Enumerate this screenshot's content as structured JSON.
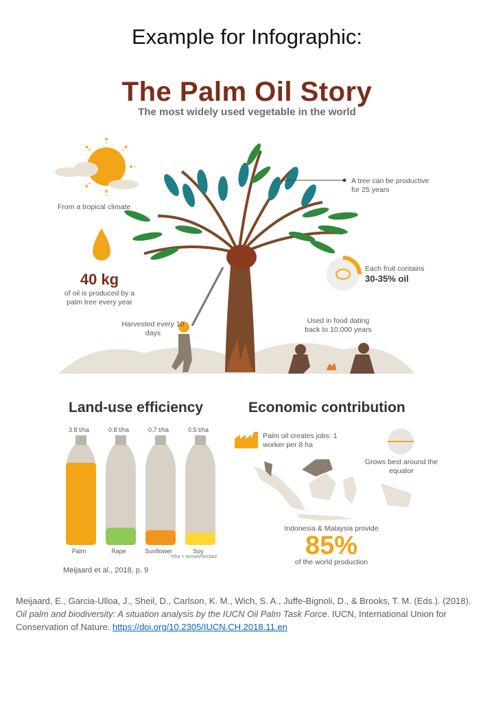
{
  "slide": {
    "title": "Example for Infographic:"
  },
  "infographic": {
    "title": "The Palm Oil Story",
    "subtitle": "The most widely used vegetable in the world",
    "climate": "From a tropical climate",
    "oil_amount": "40 kg",
    "oil_note": "of oil is produced by a palm tree every year",
    "tree_note": "A tree can be productive for 25 years",
    "fruit_note": "Each fruit contains",
    "fruit_pct": "30-35% oil",
    "harvest": "Harvested every 10 days",
    "food_history": "Used in food dating back to 10,000 years"
  },
  "land_use": {
    "heading": "Land-use efficiency",
    "bottles": [
      {
        "yield": "3.8 t/ha",
        "label": "Palm",
        "fill_fraction": 1.0,
        "color": "#f2a516"
      },
      {
        "yield": "0.8 t/ha",
        "label": "Rape",
        "fill_fraction": 0.21,
        "color": "#8ec856"
      },
      {
        "yield": "0.7 t/ha",
        "label": "Sunflower",
        "fill_fraction": 0.18,
        "color": "#f0961c"
      },
      {
        "yield": "0.5 t/ha",
        "label": "Soy",
        "fill_fraction": 0.13,
        "color": "#fdd835"
      }
    ],
    "unit_note": "*t/ha = tonnes/hectare",
    "source": "Meijaard et al., 2018, p. 9"
  },
  "economic": {
    "heading": "Economic contribution",
    "jobs": "Palm oil creates jobs: 1 worker per 8 ha",
    "equator": "Grows best around the equator",
    "provide": "Indonesia & Malaysia provide",
    "share": "85%",
    "share_note": "of the world production"
  },
  "citation": {
    "authors": "Meijaard, E., Garcia-Ulloa, J., Sheil, D., Carlson, K. M., Wich, S. A., Juffe-Bignoli, D., & Brooks, T. M. (Eds.). (2018).",
    "title": "Oil palm and biodiversity: A situation analysis by the IUCN Oil Palm Task Force",
    "publisher": ". IUCN, International Union for Conservation of Nature.",
    "doi": "https://doi.org/10.2305/IUCN.CH.2018.11.en"
  },
  "colors": {
    "brown": "#7a2e1c",
    "orange": "#f2a516",
    "teal": "#1e7f86",
    "green": "#2f8a3c",
    "sand": "#e7e1d6"
  }
}
